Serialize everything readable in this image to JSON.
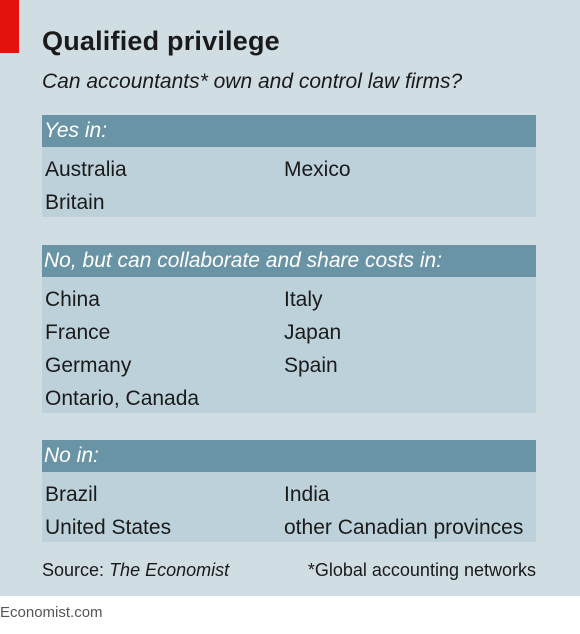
{
  "header": {
    "title": "Qualified privilege",
    "subtitle": "Can accountants* own and control law firms?"
  },
  "sections": [
    {
      "heading": "Yes in:",
      "left": [
        "Australia",
        "Britain"
      ],
      "right": [
        "Mexico"
      ]
    },
    {
      "heading": "No, but can collaborate and share costs in:",
      "left": [
        "China",
        "France",
        "Germany",
        "Ontario, Canada"
      ],
      "right": [
        "Italy",
        "Japan",
        "Spain"
      ]
    },
    {
      "heading": "No in:",
      "left": [
        "Brazil",
        "United States"
      ],
      "right": [
        "India",
        "other Canadian provinces"
      ]
    }
  ],
  "footer": {
    "source_label": "Source:",
    "source_name": "The Economist",
    "footnote": "*Global accounting networks"
  },
  "brand": "Economist.com",
  "colors": {
    "accent": "#e3120b",
    "background": "#d0dde3",
    "header_band": "#6994a6",
    "body_band": "#bdd1da"
  }
}
